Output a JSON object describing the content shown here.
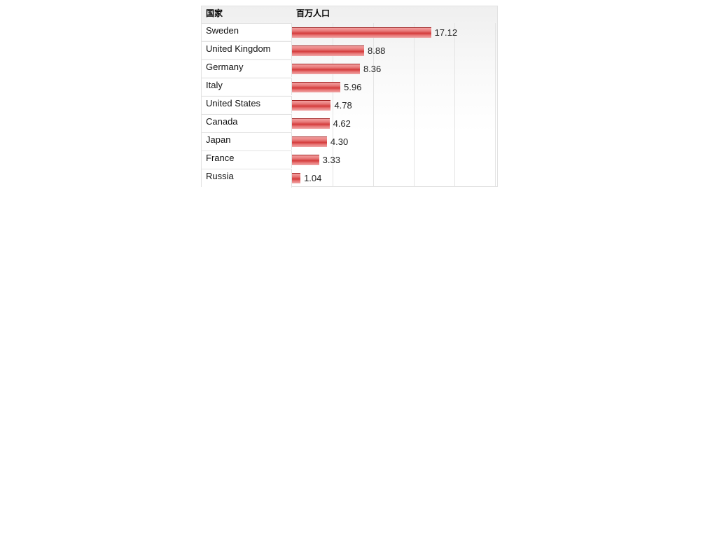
{
  "chart_data": {
    "type": "bar",
    "orientation": "horizontal",
    "headers": {
      "category": "国家",
      "value": "百万人口"
    },
    "categories": [
      "Sweden",
      "United Kingdom",
      "Germany",
      "Italy",
      "United States",
      "Canada",
      "Japan",
      "France",
      "Russia"
    ],
    "values": [
      17.12,
      8.88,
      8.36,
      5.96,
      4.78,
      4.62,
      4.3,
      3.33,
      1.04
    ],
    "value_labels": [
      "17.12",
      "8.88",
      "8.36",
      "5.96",
      "4.78",
      "4.62",
      "4.30",
      "3.33",
      "1.04"
    ],
    "xlim": [
      0,
      25
    ],
    "grid": true,
    "bar_color": "#d43c3c"
  }
}
